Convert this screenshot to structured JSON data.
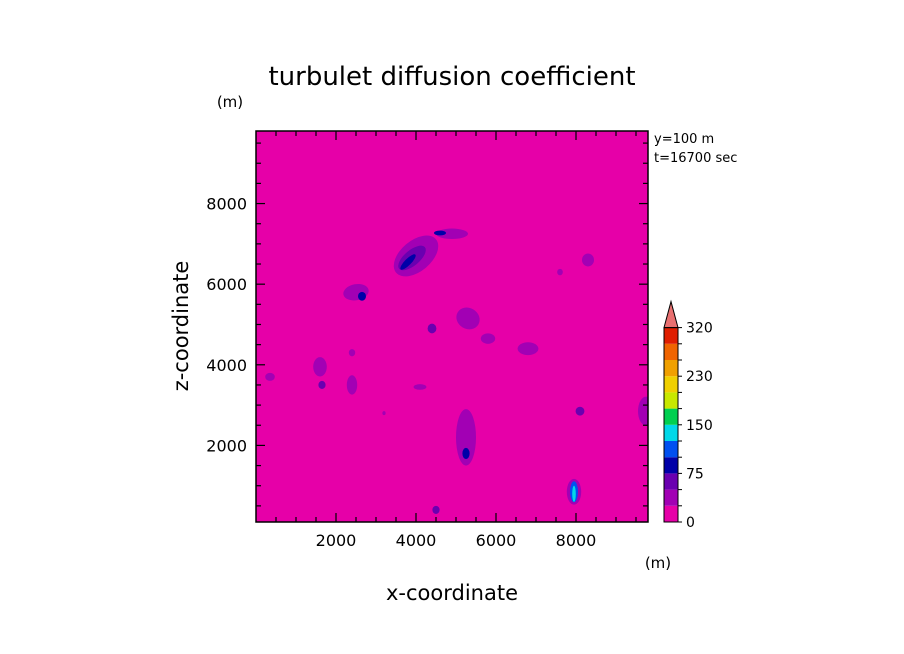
{
  "chart_data": {
    "type": "heatmap",
    "title": "turbulet diffusion coefficient",
    "xlabel": "x-coordinate",
    "ylabel": "z-coordinate",
    "x_unit": "(m)",
    "y_unit": "(m)",
    "annotations": [
      "y=100 m",
      "t=16700 sec"
    ],
    "xlim": [
      0,
      9800
    ],
    "ylim": [
      100,
      9800
    ],
    "x_ticks": [
      2000,
      4000,
      6000,
      8000
    ],
    "y_ticks": [
      2000,
      4000,
      6000,
      8000
    ],
    "x_tick_labels": [
      "2000",
      "4000",
      "6000",
      "8000"
    ],
    "y_tick_labels": [
      "2000",
      "4000",
      "6000",
      "8000"
    ],
    "background_level_color": "#e600a8",
    "colorbar": {
      "levels": [
        0,
        25,
        50,
        75,
        100,
        125,
        150,
        175,
        200,
        230,
        260,
        290,
        320
      ],
      "labeled": [
        "0",
        "75",
        "150",
        "230",
        "320"
      ],
      "colors": [
        "#e600a8",
        "#a200b4",
        "#6a00b0",
        "#0000a8",
        "#0050f0",
        "#00d8e8",
        "#00d050",
        "#c8e800",
        "#f0d000",
        "#f0a000",
        "#f06400",
        "#e01e00"
      ],
      "extend_color": "#e87070"
    },
    "features": [
      {
        "x": 4000,
        "z": 6700,
        "rx": 650,
        "ry": 380,
        "rot": -40,
        "level": 1
      },
      {
        "x": 3900,
        "z": 6650,
        "rx": 420,
        "ry": 190,
        "rot": -40,
        "level": 2
      },
      {
        "x": 3800,
        "z": 6550,
        "rx": 260,
        "ry": 80,
        "rot": -45,
        "level": 3
      },
      {
        "x": 4900,
        "z": 7250,
        "rx": 400,
        "ry": 130,
        "rot": 0,
        "level": 1
      },
      {
        "x": 4600,
        "z": 7270,
        "rx": 150,
        "ry": 60,
        "rot": 0,
        "level": 3
      },
      {
        "x": 2500,
        "z": 5800,
        "rx": 320,
        "ry": 200,
        "rot": -10,
        "level": 1
      },
      {
        "x": 2650,
        "z": 5700,
        "rx": 100,
        "ry": 110,
        "rot": 0,
        "level": 3
      },
      {
        "x": 5300,
        "z": 5150,
        "rx": 300,
        "ry": 260,
        "rot": 30,
        "level": 1
      },
      {
        "x": 4400,
        "z": 4900,
        "rx": 110,
        "ry": 120,
        "rot": 0,
        "level": 2
      },
      {
        "x": 5800,
        "z": 4650,
        "rx": 180,
        "ry": 130,
        "rot": 0,
        "level": 1
      },
      {
        "x": 6800,
        "z": 4400,
        "rx": 260,
        "ry": 160,
        "rot": 0,
        "level": 1
      },
      {
        "x": 8300,
        "z": 6600,
        "rx": 150,
        "ry": 160,
        "rot": 0,
        "level": 1
      },
      {
        "x": 7600,
        "z": 6300,
        "rx": 70,
        "ry": 80,
        "rot": 0,
        "level": 1
      },
      {
        "x": 1600,
        "z": 3950,
        "rx": 170,
        "ry": 240,
        "rot": 0,
        "level": 1
      },
      {
        "x": 1650,
        "z": 3500,
        "rx": 90,
        "ry": 100,
        "rot": 0,
        "level": 2
      },
      {
        "x": 2400,
        "z": 3500,
        "rx": 130,
        "ry": 240,
        "rot": 0,
        "level": 1
      },
      {
        "x": 2400,
        "z": 4300,
        "rx": 80,
        "ry": 90,
        "rot": 0,
        "level": 1
      },
      {
        "x": 350,
        "z": 3700,
        "rx": 120,
        "ry": 100,
        "rot": 0,
        "level": 1
      },
      {
        "x": 5250,
        "z": 2200,
        "rx": 250,
        "ry": 700,
        "rot": 0,
        "level": 1
      },
      {
        "x": 5250,
        "z": 1800,
        "rx": 90,
        "ry": 140,
        "rot": 0,
        "level": 3
      },
      {
        "x": 7950,
        "z": 850,
        "rx": 180,
        "ry": 320,
        "rot": 0,
        "level": 1
      },
      {
        "x": 7950,
        "z": 850,
        "rx": 100,
        "ry": 260,
        "rot": 0,
        "level": 4
      },
      {
        "x": 7950,
        "z": 800,
        "rx": 45,
        "ry": 200,
        "rot": 0,
        "level": 5
      },
      {
        "x": 8100,
        "z": 2850,
        "rx": 110,
        "ry": 110,
        "rot": 0,
        "level": 2
      },
      {
        "x": 9750,
        "z": 2850,
        "rx": 200,
        "ry": 360,
        "rot": 0,
        "level": 1
      },
      {
        "x": 4500,
        "z": 400,
        "rx": 90,
        "ry": 100,
        "rot": 0,
        "level": 2
      },
      {
        "x": 3200,
        "z": 2800,
        "rx": 40,
        "ry": 50,
        "rot": 0,
        "level": 1
      },
      {
        "x": 4100,
        "z": 3450,
        "rx": 160,
        "ry": 70,
        "rot": 0,
        "level": 1
      }
    ]
  }
}
